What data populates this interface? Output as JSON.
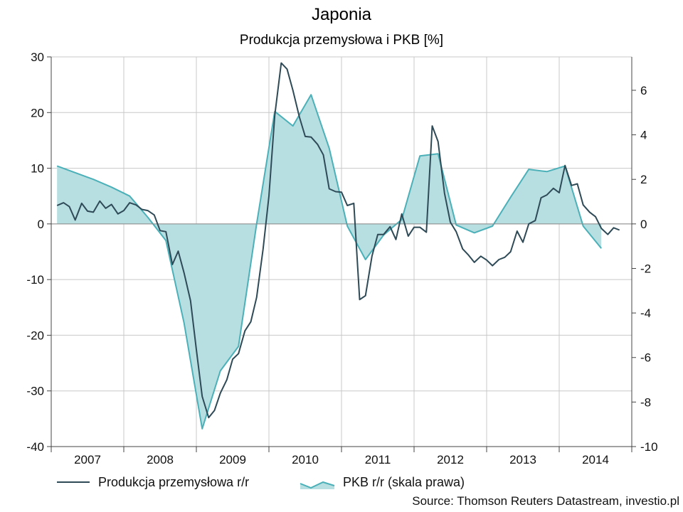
{
  "chart_data": {
    "type": "line",
    "title": "Japonia",
    "subtitle": "Produkcja przemysłowa i PKB [%]",
    "x_labels": [
      "2007",
      "2008",
      "2009",
      "2010",
      "2011",
      "2012",
      "2013",
      "2014"
    ],
    "y_left": {
      "lim": [
        -40,
        30
      ],
      "ticks": [
        30,
        20,
        10,
        0,
        -10,
        -20,
        -30,
        -40
      ]
    },
    "y_right": {
      "lim": [
        -10,
        7.5
      ],
      "ticks": [
        6,
        4,
        2,
        0,
        -2,
        -4,
        -6,
        -8,
        -10
      ]
    },
    "grid": true,
    "series": [
      {
        "name": "Produkcja przemysłowa r/r",
        "axis": "left",
        "style": "line",
        "color": "#2e4a57",
        "points": [
          [
            2006.58,
            3.3
          ],
          [
            2006.67,
            3.8
          ],
          [
            2006.75,
            3.1
          ],
          [
            2006.83,
            0.7
          ],
          [
            2006.92,
            3.7
          ],
          [
            2007.0,
            2.3
          ],
          [
            2007.08,
            2.1
          ],
          [
            2007.17,
            4.1
          ],
          [
            2007.25,
            2.8
          ],
          [
            2007.33,
            3.5
          ],
          [
            2007.42,
            1.8
          ],
          [
            2007.5,
            2.4
          ],
          [
            2007.58,
            3.8
          ],
          [
            2007.67,
            3.4
          ],
          [
            2007.75,
            2.6
          ],
          [
            2007.83,
            2.4
          ],
          [
            2007.92,
            1.6
          ],
          [
            2008.0,
            -1.2
          ],
          [
            2008.08,
            -1.4
          ],
          [
            2008.17,
            -7.3
          ],
          [
            2008.25,
            -4.9
          ],
          [
            2008.33,
            -8.8
          ],
          [
            2008.42,
            -13.8
          ],
          [
            2008.5,
            -22.6
          ],
          [
            2008.58,
            -31.0
          ],
          [
            2008.67,
            -34.8
          ],
          [
            2008.75,
            -33.5
          ],
          [
            2008.83,
            -30.4
          ],
          [
            2008.92,
            -28.0
          ],
          [
            2009.0,
            -24.3
          ],
          [
            2009.08,
            -23.3
          ],
          [
            2009.17,
            -19.2
          ],
          [
            2009.25,
            -17.6
          ],
          [
            2009.33,
            -13.2
          ],
          [
            2009.42,
            -4.5
          ],
          [
            2009.5,
            5.0
          ],
          [
            2009.58,
            19.5
          ],
          [
            2009.67,
            28.9
          ],
          [
            2009.75,
            27.8
          ],
          [
            2009.83,
            24.0
          ],
          [
            2009.92,
            19.2
          ],
          [
            2010.0,
            15.7
          ],
          [
            2010.08,
            15.6
          ],
          [
            2010.17,
            14.3
          ],
          [
            2010.25,
            12.4
          ],
          [
            2010.33,
            6.3
          ],
          [
            2010.42,
            5.8
          ],
          [
            2010.5,
            5.7
          ],
          [
            2010.58,
            3.3
          ],
          [
            2010.67,
            3.7
          ],
          [
            2010.75,
            -13.6
          ],
          [
            2010.83,
            -12.9
          ],
          [
            2010.92,
            -5.8
          ],
          [
            2011.0,
            -1.9
          ],
          [
            2011.08,
            -1.9
          ],
          [
            2011.17,
            -0.5
          ],
          [
            2011.25,
            -2.8
          ],
          [
            2011.33,
            1.8
          ],
          [
            2011.42,
            -2.2
          ],
          [
            2011.5,
            -0.6
          ],
          [
            2011.58,
            -0.6
          ],
          [
            2011.67,
            -1.5
          ],
          [
            2011.75,
            17.6
          ],
          [
            2011.83,
            14.8
          ],
          [
            2011.92,
            5.5
          ],
          [
            2012.0,
            0.3
          ],
          [
            2012.08,
            -1.4
          ],
          [
            2012.17,
            -4.5
          ],
          [
            2012.25,
            -5.6
          ],
          [
            2012.33,
            -6.9
          ],
          [
            2012.42,
            -5.8
          ],
          [
            2012.5,
            -6.5
          ],
          [
            2012.58,
            -7.5
          ],
          [
            2012.67,
            -6.4
          ],
          [
            2012.75,
            -6.0
          ],
          [
            2012.83,
            -5.0
          ],
          [
            2012.92,
            -1.3
          ],
          [
            2013.0,
            -3.3
          ],
          [
            2013.08,
            0.0
          ],
          [
            2013.17,
            0.6
          ],
          [
            2013.25,
            4.7
          ],
          [
            2013.33,
            5.2
          ],
          [
            2013.42,
            6.4
          ],
          [
            2013.5,
            5.6
          ],
          [
            2013.58,
            10.5
          ],
          [
            2013.67,
            6.9
          ],
          [
            2013.75,
            7.2
          ],
          [
            2013.83,
            3.4
          ],
          [
            2013.92,
            2.1
          ],
          [
            2014.0,
            1.3
          ],
          [
            2014.08,
            -0.8
          ],
          [
            2014.17,
            -1.9
          ],
          [
            2014.25,
            -0.7
          ],
          [
            2014.33,
            -1.1
          ]
        ]
      },
      {
        "name": "PKB r/r (skala prawa)",
        "axis": "right",
        "style": "area",
        "color": "#4bb0b8",
        "fill": "#b7dfe2",
        "points": [
          [
            2006.58,
            2.6
          ],
          [
            2007.08,
            2.0
          ],
          [
            2007.33,
            1.65
          ],
          [
            2007.58,
            1.25
          ],
          [
            2007.83,
            0.3
          ],
          [
            2008.08,
            -0.75
          ],
          [
            2008.33,
            -4.45
          ],
          [
            2008.58,
            -9.2
          ],
          [
            2008.83,
            -6.6
          ],
          [
            2009.08,
            -5.5
          ],
          [
            2009.33,
            0.0
          ],
          [
            2009.58,
            5.05
          ],
          [
            2009.83,
            4.4
          ],
          [
            2010.08,
            5.8
          ],
          [
            2010.33,
            3.4
          ],
          [
            2010.58,
            -0.1
          ],
          [
            2010.83,
            -1.6
          ],
          [
            2011.08,
            -0.5
          ],
          [
            2011.33,
            0.2
          ],
          [
            2011.58,
            3.05
          ],
          [
            2011.83,
            3.15
          ],
          [
            2012.08,
            -0.05
          ],
          [
            2012.33,
            -0.4
          ],
          [
            2012.58,
            -0.1
          ],
          [
            2012.83,
            1.2
          ],
          [
            2013.08,
            2.45
          ],
          [
            2013.33,
            2.35
          ],
          [
            2013.58,
            2.6
          ],
          [
            2013.83,
            -0.1
          ],
          [
            2014.08,
            -1.1
          ]
        ]
      }
    ]
  },
  "legend": {
    "items": [
      "Produkcja przemysłowa r/r",
      "PKB r/r (skala prawa)"
    ]
  },
  "source": "Source: Thomson Reuters Datastream, investio.pl"
}
